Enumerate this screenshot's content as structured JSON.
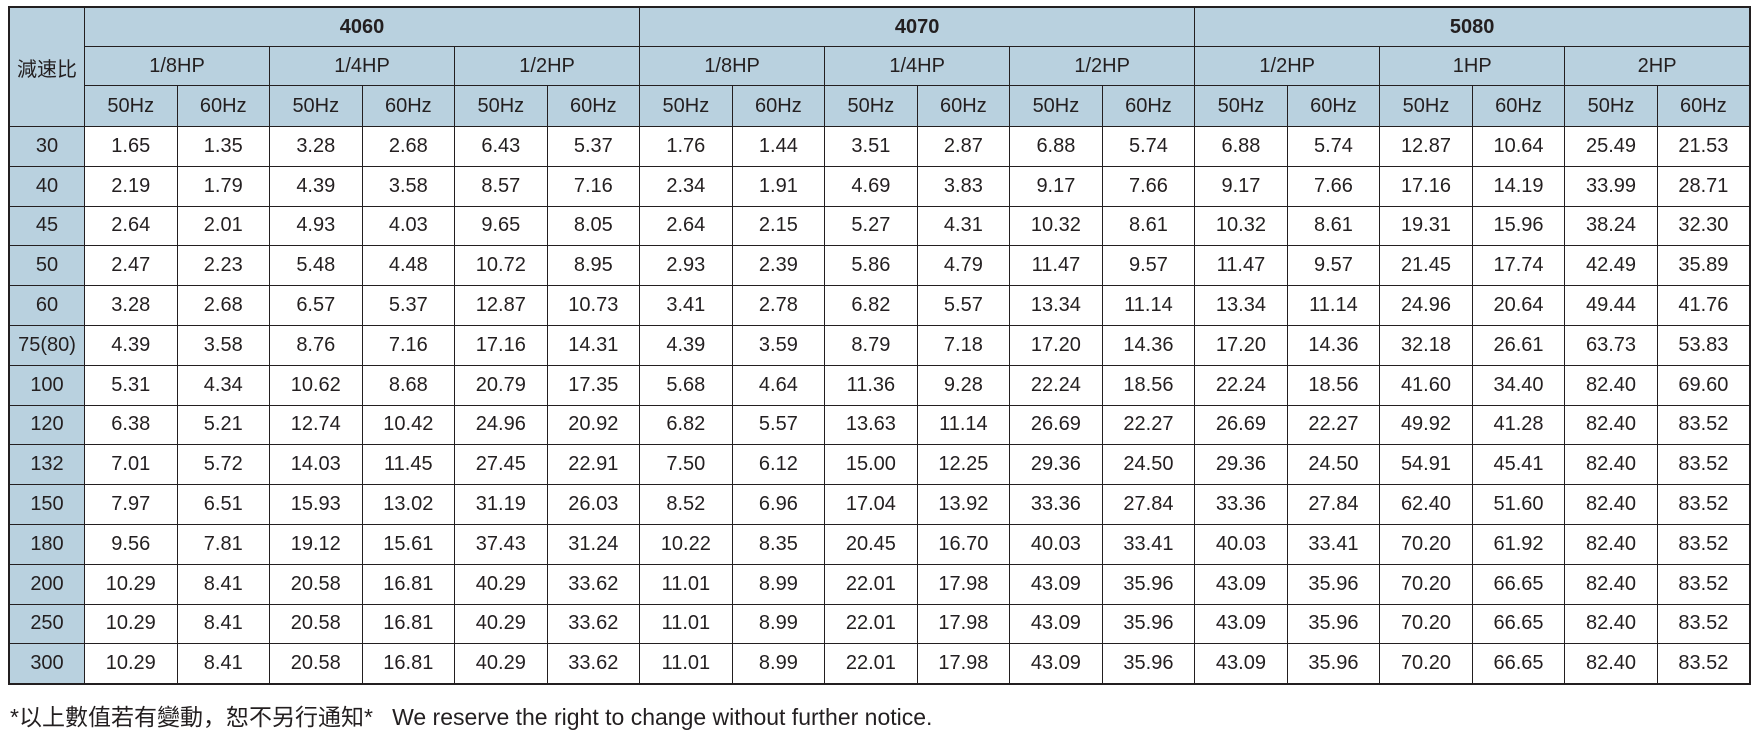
{
  "table": {
    "ratio_header": "減速比",
    "models": [
      {
        "name": "4060",
        "hps": [
          "1/8HP",
          "1/4HP",
          "1/2HP"
        ]
      },
      {
        "name": "4070",
        "hps": [
          "1/8HP",
          "1/4HP",
          "1/2HP"
        ]
      },
      {
        "name": "5080",
        "hps": [
          "1/2HP",
          "1HP",
          "2HP"
        ]
      }
    ],
    "freqs": [
      "50Hz",
      "60Hz"
    ],
    "rows": [
      {
        "ratio": "30",
        "values": [
          "1.65",
          "1.35",
          "3.28",
          "2.68",
          "6.43",
          "5.37",
          "1.76",
          "1.44",
          "3.51",
          "2.87",
          "6.88",
          "5.74",
          "6.88",
          "5.74",
          "12.87",
          "10.64",
          "25.49",
          "21.53"
        ]
      },
      {
        "ratio": "40",
        "values": [
          "2.19",
          "1.79",
          "4.39",
          "3.58",
          "8.57",
          "7.16",
          "2.34",
          "1.91",
          "4.69",
          "3.83",
          "9.17",
          "7.66",
          "9.17",
          "7.66",
          "17.16",
          "14.19",
          "33.99",
          "28.71"
        ]
      },
      {
        "ratio": "45",
        "values": [
          "2.64",
          "2.01",
          "4.93",
          "4.03",
          "9.65",
          "8.05",
          "2.64",
          "2.15",
          "5.27",
          "4.31",
          "10.32",
          "8.61",
          "10.32",
          "8.61",
          "19.31",
          "15.96",
          "38.24",
          "32.30"
        ]
      },
      {
        "ratio": "50",
        "values": [
          "2.47",
          "2.23",
          "5.48",
          "4.48",
          "10.72",
          "8.95",
          "2.93",
          "2.39",
          "5.86",
          "4.79",
          "11.47",
          "9.57",
          "11.47",
          "9.57",
          "21.45",
          "17.74",
          "42.49",
          "35.89"
        ]
      },
      {
        "ratio": "60",
        "values": [
          "3.28",
          "2.68",
          "6.57",
          "5.37",
          "12.87",
          "10.73",
          "3.41",
          "2.78",
          "6.82",
          "5.57",
          "13.34",
          "11.14",
          "13.34",
          "11.14",
          "24.96",
          "20.64",
          "49.44",
          "41.76"
        ]
      },
      {
        "ratio": "75(80)",
        "values": [
          "4.39",
          "3.58",
          "8.76",
          "7.16",
          "17.16",
          "14.31",
          "4.39",
          "3.59",
          "8.79",
          "7.18",
          "17.20",
          "14.36",
          "17.20",
          "14.36",
          "32.18",
          "26.61",
          "63.73",
          "53.83"
        ]
      },
      {
        "ratio": "100",
        "values": [
          "5.31",
          "4.34",
          "10.62",
          "8.68",
          "20.79",
          "17.35",
          "5.68",
          "4.64",
          "11.36",
          "9.28",
          "22.24",
          "18.56",
          "22.24",
          "18.56",
          "41.60",
          "34.40",
          "82.40",
          "69.60"
        ]
      },
      {
        "ratio": "120",
        "values": [
          "6.38",
          "5.21",
          "12.74",
          "10.42",
          "24.96",
          "20.92",
          "6.82",
          "5.57",
          "13.63",
          "11.14",
          "26.69",
          "22.27",
          "26.69",
          "22.27",
          "49.92",
          "41.28",
          "82.40",
          "83.52"
        ]
      },
      {
        "ratio": "132",
        "values": [
          "7.01",
          "5.72",
          "14.03",
          "11.45",
          "27.45",
          "22.91",
          "7.50",
          "6.12",
          "15.00",
          "12.25",
          "29.36",
          "24.50",
          "29.36",
          "24.50",
          "54.91",
          "45.41",
          "82.40",
          "83.52"
        ]
      },
      {
        "ratio": "150",
        "values": [
          "7.97",
          "6.51",
          "15.93",
          "13.02",
          "31.19",
          "26.03",
          "8.52",
          "6.96",
          "17.04",
          "13.92",
          "33.36",
          "27.84",
          "33.36",
          "27.84",
          "62.40",
          "51.60",
          "82.40",
          "83.52"
        ]
      },
      {
        "ratio": "180",
        "values": [
          "9.56",
          "7.81",
          "19.12",
          "15.61",
          "37.43",
          "31.24",
          "10.22",
          "8.35",
          "20.45",
          "16.70",
          "40.03",
          "33.41",
          "40.03",
          "33.41",
          "70.20",
          "61.92",
          "82.40",
          "83.52"
        ]
      },
      {
        "ratio": "200",
        "values": [
          "10.29",
          "8.41",
          "20.58",
          "16.81",
          "40.29",
          "33.62",
          "11.01",
          "8.99",
          "22.01",
          "17.98",
          "43.09",
          "35.96",
          "43.09",
          "35.96",
          "70.20",
          "66.65",
          "82.40",
          "83.52"
        ]
      },
      {
        "ratio": "250",
        "values": [
          "10.29",
          "8.41",
          "20.58",
          "16.81",
          "40.29",
          "33.62",
          "11.01",
          "8.99",
          "22.01",
          "17.98",
          "43.09",
          "35.96",
          "43.09",
          "35.96",
          "70.20",
          "66.65",
          "82.40",
          "83.52"
        ]
      },
      {
        "ratio": "300",
        "values": [
          "10.29",
          "8.41",
          "20.58",
          "16.81",
          "40.29",
          "33.62",
          "11.01",
          "8.99",
          "22.01",
          "17.98",
          "43.09",
          "35.96",
          "43.09",
          "35.96",
          "70.20",
          "66.65",
          "82.40",
          "83.52"
        ]
      }
    ]
  },
  "footnote": "*以上數值若有變動，恕不另行通知*   We reserve the right to change without further notice.",
  "colors": {
    "header_bg": "#b9d1df",
    "border": "#231f20"
  }
}
